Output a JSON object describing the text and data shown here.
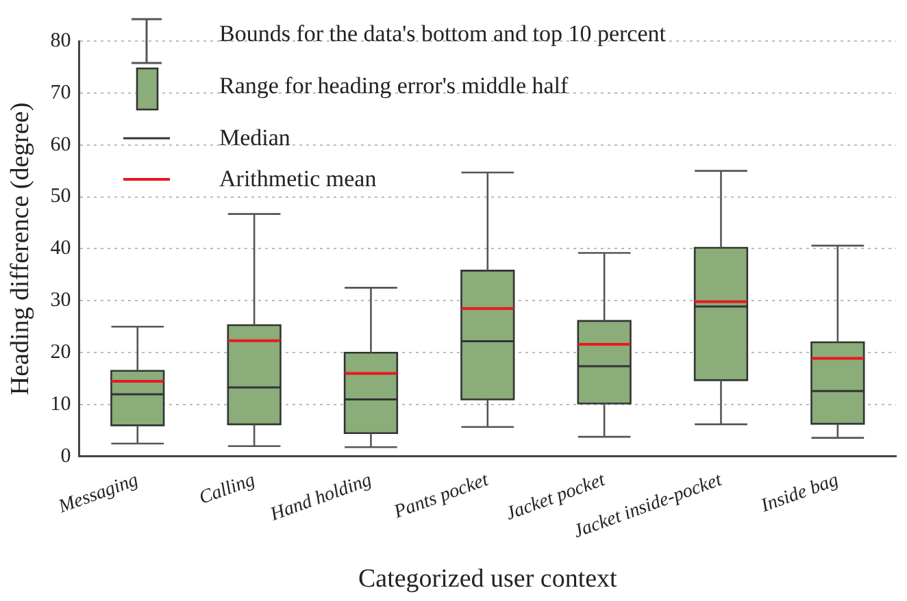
{
  "chart_data": {
    "type": "box",
    "xlabel": "Categorized user context",
    "ylabel": "Heading difference (degree)",
    "categories": [
      "Messaging",
      "Calling",
      "Hand holding",
      "Pants pocket",
      "Jacket pocket",
      "Jacket inside-pocket",
      "Inside bag"
    ],
    "ylim": [
      0,
      80
    ],
    "yticks": [
      0,
      10,
      20,
      30,
      40,
      50,
      60,
      70,
      80
    ],
    "grid": "y",
    "color": "#8aad7a",
    "annotations": [
      "Bounds for the data's bottom and top 10 percent",
      "Range for heading error's middle half",
      "Median",
      "Arithmetic mean"
    ],
    "boxes": [
      {
        "low": 2.5,
        "q1": 6,
        "median": 12,
        "q3": 16.5,
        "high": 25,
        "mean": 14.5
      },
      {
        "low": 2,
        "q1": 6.2,
        "median": 13.3,
        "q3": 25.3,
        "high": 46.7,
        "mean": 22.3
      },
      {
        "low": 1.8,
        "q1": 4.5,
        "median": 11,
        "q3": 20,
        "high": 32.5,
        "mean": 16
      },
      {
        "low": 5.7,
        "q1": 11,
        "median": 22.2,
        "q3": 35.8,
        "high": 54.7,
        "mean": 28.5
      },
      {
        "low": 3.8,
        "q1": 10.2,
        "median": 17.4,
        "q3": 26.1,
        "high": 39.2,
        "mean": 21.6
      },
      {
        "low": 6.2,
        "q1": 14.7,
        "median": 28.9,
        "q3": 40.2,
        "high": 55,
        "mean": 29.8
      },
      {
        "low": 3.6,
        "q1": 6.3,
        "median": 12.6,
        "q3": 22,
        "high": 40.6,
        "mean": 18.9
      }
    ]
  }
}
